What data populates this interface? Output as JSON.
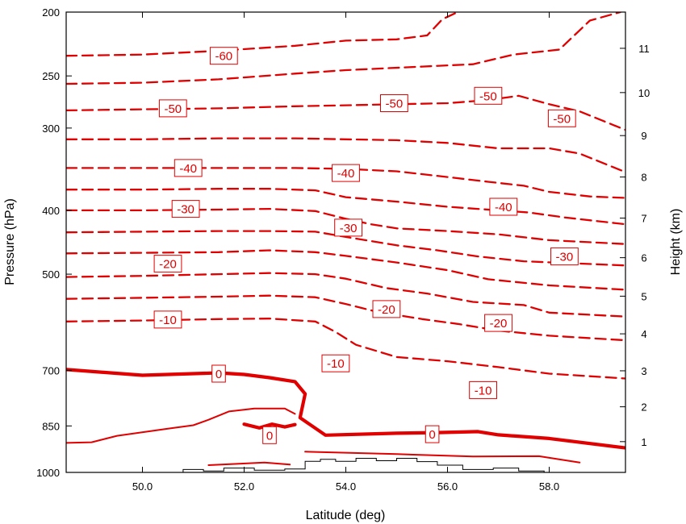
{
  "chart_data": {
    "type": "contour",
    "xlabel": "Latitude (deg)",
    "ylabel_left": "Pressure (hPa)",
    "ylabel_right": "Height (km)",
    "xlim": [
      48.5,
      59.5
    ],
    "ylim_pressure": [
      1000,
      200
    ],
    "y_scale": "log pressure",
    "x_ticks": [
      {
        "value": 50,
        "label": "50.0"
      },
      {
        "value": 52,
        "label": "52.0"
      },
      {
        "value": 54,
        "label": "54.0"
      },
      {
        "value": 56,
        "label": "56.0"
      },
      {
        "value": 58,
        "label": "58.0"
      }
    ],
    "pressure_ticks": [
      {
        "value": 200,
        "label": "200"
      },
      {
        "value": 250,
        "label": "250"
      },
      {
        "value": 300,
        "label": "300"
      },
      {
        "value": 400,
        "label": "400"
      },
      {
        "value": 500,
        "label": "500"
      },
      {
        "value": 700,
        "label": "700"
      },
      {
        "value": 850,
        "label": "850"
      },
      {
        "value": 1000,
        "label": "1000"
      }
    ],
    "height_ticks": [
      {
        "pressure": 898,
        "label": "1"
      },
      {
        "pressure": 795,
        "label": "2"
      },
      {
        "pressure": 701,
        "label": "3"
      },
      {
        "pressure": 616,
        "label": "4"
      },
      {
        "pressure": 540,
        "label": "5"
      },
      {
        "pressure": 472,
        "label": "6"
      },
      {
        "pressure": 411,
        "label": "7"
      },
      {
        "pressure": 356,
        "label": "8"
      },
      {
        "pressure": 308,
        "label": "9"
      },
      {
        "pressure": 265,
        "label": "10"
      },
      {
        "pressure": 227,
        "label": "11"
      }
    ],
    "contour_style": "negative values dashed, zero thick solid, positive thin solid",
    "line_color": "#e00000",
    "terrain_color": "#000000",
    "contour_interval": 5,
    "contours": [
      {
        "value": -60,
        "points": [
          [
            48.5,
            233
          ],
          [
            50,
            232
          ],
          [
            51.5,
            229
          ],
          [
            53,
            225
          ],
          [
            54,
            221
          ],
          [
            55,
            220
          ],
          [
            55.6,
            217
          ],
          [
            55.9,
            205
          ],
          [
            56.2,
            200
          ]
        ]
      },
      {
        "value": -55,
        "points": [
          [
            48.5,
            257
          ],
          [
            50,
            256
          ],
          [
            51.5,
            253
          ],
          [
            53,
            248
          ],
          [
            54,
            245
          ],
          [
            55.5,
            242
          ],
          [
            56.5,
            240
          ],
          [
            57.3,
            232
          ],
          [
            58.2,
            228
          ],
          [
            58.8,
            206
          ],
          [
            59.4,
            200
          ]
        ]
      },
      {
        "value": -50,
        "points": [
          [
            48.5,
            282
          ],
          [
            50,
            281
          ],
          [
            51.5,
            280
          ],
          [
            53,
            278
          ],
          [
            54,
            277
          ],
          [
            55,
            276
          ],
          [
            56,
            275
          ],
          [
            56.8,
            272
          ],
          [
            57.4,
            268
          ],
          [
            58,
            276
          ],
          [
            58.6,
            283
          ],
          [
            59.5,
            302
          ]
        ]
      },
      {
        "value": -45,
        "points": [
          [
            48.5,
            312
          ],
          [
            50,
            312
          ],
          [
            51.5,
            311
          ],
          [
            53,
            311
          ],
          [
            54,
            312
          ],
          [
            55,
            313
          ],
          [
            56,
            316
          ],
          [
            57,
            322
          ],
          [
            58,
            322
          ],
          [
            58.6,
            328
          ],
          [
            59.5,
            350
          ]
        ]
      },
      {
        "value": -40,
        "points": [
          [
            48.5,
            345
          ],
          [
            50,
            345
          ],
          [
            51.5,
            345
          ],
          [
            53,
            345
          ],
          [
            54,
            346
          ],
          [
            55,
            349
          ],
          [
            56,
            356
          ],
          [
            56.8,
            362
          ],
          [
            57.5,
            367
          ],
          [
            58,
            375
          ],
          [
            58.8,
            381
          ],
          [
            59.5,
            383
          ]
        ]
      },
      {
        "value": -35,
        "points": [
          [
            48.5,
            372
          ],
          [
            50,
            372
          ],
          [
            51.5,
            371
          ],
          [
            52.5,
            371
          ],
          [
            53.4,
            373
          ],
          [
            54,
            382
          ],
          [
            55,
            388
          ],
          [
            56,
            395
          ],
          [
            57,
            400
          ],
          [
            57.6,
            403
          ],
          [
            58.3,
            410
          ],
          [
            59.5,
            420
          ]
        ]
      },
      {
        "value": -30,
        "points": [
          [
            48.5,
            400
          ],
          [
            50,
            400
          ],
          [
            51.5,
            399
          ],
          [
            52.5,
            398
          ],
          [
            53.4,
            401
          ],
          [
            54,
            412
          ],
          [
            54.5,
            420
          ],
          [
            55,
            426
          ],
          [
            56,
            430
          ],
          [
            57,
            435
          ],
          [
            58,
            444
          ],
          [
            59.5,
            450
          ]
        ]
      },
      {
        "value": -25,
        "points": [
          [
            48.5,
            432
          ],
          [
            50,
            431
          ],
          [
            51.5,
            430
          ],
          [
            52.5,
            430
          ],
          [
            53.4,
            431
          ],
          [
            54,
            439
          ],
          [
            55,
            452
          ],
          [
            55.8,
            460
          ],
          [
            56.6,
            470
          ],
          [
            57.5,
            478
          ],
          [
            59.5,
            485
          ]
        ]
      },
      {
        "value": -20,
        "points": [
          [
            48.5,
            465
          ],
          [
            50,
            464
          ],
          [
            51.5,
            463
          ],
          [
            52.5,
            460
          ],
          [
            53.4,
            463
          ],
          [
            54,
            469
          ],
          [
            55,
            480
          ],
          [
            56,
            493
          ],
          [
            56.8,
            509
          ],
          [
            58,
            520
          ],
          [
            59.5,
            528
          ]
        ]
      },
      {
        "value": -15,
        "points": [
          [
            48.5,
            505
          ],
          [
            50,
            503
          ],
          [
            51.5,
            500
          ],
          [
            52.5,
            498
          ],
          [
            53.4,
            500
          ],
          [
            54,
            508
          ],
          [
            54.8,
            525
          ],
          [
            55.6,
            535
          ],
          [
            56.5,
            551
          ],
          [
            57.5,
            557
          ],
          [
            58,
            572
          ],
          [
            59.5,
            580
          ]
        ]
      },
      {
        "value": -10,
        "points": [
          [
            48.5,
            545
          ],
          [
            50,
            543
          ],
          [
            51.5,
            541
          ],
          [
            52.5,
            539
          ],
          [
            53.4,
            542
          ],
          [
            54,
            555
          ],
          [
            54.6,
            570
          ],
          [
            55.5,
            585
          ],
          [
            56.2,
            595
          ],
          [
            57,
            609
          ],
          [
            58,
            620
          ],
          [
            59.5,
            630
          ]
        ]
      },
      {
        "value": -5,
        "points": [
          [
            48.5,
            590
          ],
          [
            50,
            588
          ],
          [
            51.5,
            585
          ],
          [
            52.5,
            584
          ],
          [
            53.4,
            590
          ],
          [
            53.8,
            612
          ],
          [
            54.2,
            640
          ],
          [
            55,
            668
          ],
          [
            56,
            678
          ],
          [
            57,
            692
          ],
          [
            58,
            708
          ],
          [
            59.5,
            720
          ]
        ]
      },
      {
        "value": 0,
        "points": [
          [
            48.5,
            698
          ],
          [
            50,
            712
          ],
          [
            51.5,
            706
          ],
          [
            52,
            710
          ],
          [
            52.5,
            718
          ],
          [
            53,
            728
          ],
          [
            53.2,
            760
          ],
          [
            53.1,
            826
          ],
          [
            53.6,
            878
          ],
          [
            55,
            872
          ],
          [
            55.8,
            870
          ],
          [
            56.6,
            867
          ],
          [
            57,
            877
          ],
          [
            58,
            888
          ],
          [
            59.5,
            918
          ]
        ]
      },
      {
        "value": 5,
        "points": [
          [
            48.5,
            902
          ],
          [
            49,
            900
          ],
          [
            49.5,
            880
          ],
          [
            50.5,
            858
          ],
          [
            51,
            848
          ],
          [
            51.3,
            832
          ],
          [
            51.7,
            808
          ],
          [
            52.2,
            800
          ],
          [
            52.8,
            800
          ],
          [
            53.0,
            815
          ]
        ]
      },
      {
        "value": 0,
        "points": [
          [
            52,
            845
          ],
          [
            52.3,
            856
          ],
          [
            52.55,
            845
          ],
          [
            52.8,
            853
          ],
          [
            53.0,
            846
          ]
        ]
      },
      {
        "value": 5,
        "points": [
          [
            53.2,
            930
          ],
          [
            55,
            938
          ],
          [
            56.5,
            946
          ],
          [
            57.8,
            945
          ],
          [
            58.6,
            966
          ]
        ]
      },
      {
        "value": 10,
        "points": [
          [
            51.3,
            975
          ],
          [
            51.9,
            970
          ],
          [
            52.4,
            966
          ],
          [
            52.9,
            973
          ]
        ]
      }
    ],
    "contour_labels": [
      {
        "text": "-60",
        "x": 51.6,
        "p": 233
      },
      {
        "text": "-50",
        "x": 50.6,
        "p": 280
      },
      {
        "text": "-50",
        "x": 54.95,
        "p": 275
      },
      {
        "text": "-50",
        "x": 56.8,
        "p": 268
      },
      {
        "text": "-50",
        "x": 58.25,
        "p": 290
      },
      {
        "text": "-40",
        "x": 50.9,
        "p": 345
      },
      {
        "text": "-40",
        "x": 54.0,
        "p": 351
      },
      {
        "text": "-40",
        "x": 57.1,
        "p": 395
      },
      {
        "text": "-30",
        "x": 50.85,
        "p": 398
      },
      {
        "text": "-30",
        "x": 54.05,
        "p": 425
      },
      {
        "text": "-30",
        "x": 58.3,
        "p": 470
      },
      {
        "text": "-20",
        "x": 50.5,
        "p": 482
      },
      {
        "text": "-20",
        "x": 54.8,
        "p": 565
      },
      {
        "text": "-20",
        "x": 57.0,
        "p": 593
      },
      {
        "text": "-10",
        "x": 50.5,
        "p": 586
      },
      {
        "text": "-10",
        "x": 53.8,
        "p": 683
      },
      {
        "text": "-10",
        "x": 56.7,
        "p": 750
      },
      {
        "text": "0",
        "x": 51.5,
        "p": 708
      },
      {
        "text": "0",
        "x": 52.5,
        "p": 878
      },
      {
        "text": "0",
        "x": 55.7,
        "p": 875
      }
    ],
    "terrain_outline": [
      [
        50.8,
        1000
      ],
      [
        50.8,
        990
      ],
      [
        51.2,
        990
      ],
      [
        51.2,
        995
      ],
      [
        51.6,
        995
      ],
      [
        51.6,
        985
      ],
      [
        52.2,
        985
      ],
      [
        52.2,
        992
      ],
      [
        52.8,
        992
      ],
      [
        52.8,
        988
      ],
      [
        53.2,
        988
      ],
      [
        53.2,
        962
      ],
      [
        53.5,
        962
      ],
      [
        53.5,
        955
      ],
      [
        53.8,
        955
      ],
      [
        53.8,
        962
      ],
      [
        54.2,
        962
      ],
      [
        54.2,
        952
      ],
      [
        54.6,
        952
      ],
      [
        54.6,
        960
      ],
      [
        55.0,
        960
      ],
      [
        55.0,
        952
      ],
      [
        55.4,
        952
      ],
      [
        55.4,
        963
      ],
      [
        55.8,
        963
      ],
      [
        55.8,
        975
      ],
      [
        56.3,
        975
      ],
      [
        56.3,
        990
      ],
      [
        56.9,
        990
      ],
      [
        56.9,
        985
      ],
      [
        57.4,
        985
      ],
      [
        57.4,
        995
      ],
      [
        57.9,
        995
      ],
      [
        57.9,
        1000
      ]
    ]
  }
}
